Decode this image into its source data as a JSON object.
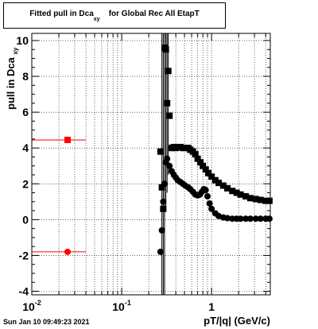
{
  "title": {
    "prefix": "Fitted pull in Dca",
    "subscript": "xy",
    "suffix": "for Global Rec All EtapT"
  },
  "footer_date": "Sun Jan 10 09:49:23 2021",
  "chart_data": {
    "type": "scatter",
    "title": "Fitted pull in Dca_xy for Global Rec All EtapT",
    "xlabel": "pT/|q| (GeV/c)",
    "ylabel_main": "pull in Dca",
    "ylabel_sub": "xy",
    "xscale": "log",
    "xlim": [
      0.01,
      4.5
    ],
    "ylim": [
      -4.2,
      10.4
    ],
    "yticks": [
      -4,
      -2,
      0,
      2,
      4,
      6,
      8,
      10
    ],
    "xticks": [
      {
        "value": 0.01,
        "base": "10",
        "exp": "-2"
      },
      {
        "value": 0.1,
        "base": "10",
        "exp": "-1"
      },
      {
        "value": 1,
        "label": "1"
      }
    ],
    "grid": true,
    "series": [
      {
        "color": "#ff0000",
        "marker": "square",
        "points": [
          {
            "x": 0.025,
            "y": 4.45,
            "xerr": [
              0.01,
              0.04
            ]
          }
        ]
      },
      {
        "color": "#ff0000",
        "marker": "circle",
        "points": [
          {
            "x": 0.025,
            "y": -1.8,
            "xerr": [
              0.01,
              0.04
            ]
          }
        ]
      },
      {
        "color": "#000000",
        "marker": "square",
        "points": [
          {
            "x": 0.27,
            "y": 3.8
          },
          {
            "x": 0.28,
            "y": 1.8
          },
          {
            "x": 0.29,
            "y": 0.6
          },
          {
            "x": 0.3,
            "y": 9.6
          },
          {
            "x": 0.31,
            "y": 9.5
          },
          {
            "x": 0.32,
            "y": 6.5
          },
          {
            "x": 0.33,
            "y": 8.3
          },
          {
            "x": 0.34,
            "y": 5.8
          },
          {
            "x": 0.36,
            "y": 4.0
          },
          {
            "x": 0.38,
            "y": 4.05
          },
          {
            "x": 0.4,
            "y": 4.0
          },
          {
            "x": 0.42,
            "y": 4.05
          },
          {
            "x": 0.45,
            "y": 4.05
          },
          {
            "x": 0.48,
            "y": 4.0
          },
          {
            "x": 0.51,
            "y": 4.0
          },
          {
            "x": 0.55,
            "y": 4.0
          },
          {
            "x": 0.58,
            "y": 3.9
          },
          {
            "x": 0.62,
            "y": 3.8
          },
          {
            "x": 0.66,
            "y": 3.65
          },
          {
            "x": 0.7,
            "y": 3.4
          },
          {
            "x": 0.75,
            "y": 3.2
          },
          {
            "x": 0.8,
            "y": 3.0
          },
          {
            "x": 0.86,
            "y": 2.8
          },
          {
            "x": 0.92,
            "y": 2.6
          },
          {
            "x": 1.0,
            "y": 2.4
          },
          {
            "x": 1.1,
            "y": 2.2
          },
          {
            "x": 1.2,
            "y": 2.05
          },
          {
            "x": 1.35,
            "y": 1.9
          },
          {
            "x": 1.5,
            "y": 1.75
          },
          {
            "x": 1.7,
            "y": 1.6
          },
          {
            "x": 1.9,
            "y": 1.5
          },
          {
            "x": 2.1,
            "y": 1.4
          },
          {
            "x": 2.4,
            "y": 1.3
          },
          {
            "x": 2.7,
            "y": 1.2
          },
          {
            "x": 3.1,
            "y": 1.15
          },
          {
            "x": 3.5,
            "y": 1.1
          },
          {
            "x": 4.0,
            "y": 1.05
          },
          {
            "x": 4.4,
            "y": 1.05
          }
        ]
      },
      {
        "color": "#000000",
        "marker": "circle",
        "points": [
          {
            "x": 0.27,
            "y": -1.8
          },
          {
            "x": 0.28,
            "y": -0.6
          },
          {
            "x": 0.29,
            "y": 1.0
          },
          {
            "x": 0.3,
            "y": 2.0
          },
          {
            "x": 0.31,
            "y": 3.2
          },
          {
            "x": 0.32,
            "y": 3.4
          },
          {
            "x": 0.34,
            "y": 3.0
          },
          {
            "x": 0.36,
            "y": 2.7
          },
          {
            "x": 0.38,
            "y": 2.5
          },
          {
            "x": 0.4,
            "y": 2.35
          },
          {
            "x": 0.42,
            "y": 2.2
          },
          {
            "x": 0.45,
            "y": 2.1
          },
          {
            "x": 0.48,
            "y": 2.0
          },
          {
            "x": 0.51,
            "y": 1.9
          },
          {
            "x": 0.55,
            "y": 1.8
          },
          {
            "x": 0.58,
            "y": 1.7
          },
          {
            "x": 0.62,
            "y": 1.55
          },
          {
            "x": 0.66,
            "y": 1.4
          },
          {
            "x": 0.7,
            "y": 1.35
          },
          {
            "x": 0.74,
            "y": 1.4
          },
          {
            "x": 0.78,
            "y": 1.55
          },
          {
            "x": 0.82,
            "y": 1.7
          },
          {
            "x": 0.86,
            "y": 1.65
          },
          {
            "x": 0.9,
            "y": 1.3
          },
          {
            "x": 0.95,
            "y": 0.9
          },
          {
            "x": 1.0,
            "y": 0.6
          },
          {
            "x": 1.1,
            "y": 0.35
          },
          {
            "x": 1.2,
            "y": 0.2
          },
          {
            "x": 1.35,
            "y": 0.12
          },
          {
            "x": 1.5,
            "y": 0.08
          },
          {
            "x": 1.7,
            "y": 0.05
          },
          {
            "x": 1.9,
            "y": 0.05
          },
          {
            "x": 2.1,
            "y": 0.05
          },
          {
            "x": 2.4,
            "y": 0.05
          },
          {
            "x": 2.7,
            "y": 0.05
          },
          {
            "x": 3.1,
            "y": 0.05
          },
          {
            "x": 3.5,
            "y": 0.05
          },
          {
            "x": 4.0,
            "y": 0.05
          },
          {
            "x": 4.4,
            "y": 0.05
          }
        ]
      }
    ],
    "vertical_error_bars": [
      {
        "x": 0.28,
        "ylow": -4.2,
        "yhigh": 10.4
      },
      {
        "x": 0.29,
        "ylow": -4.2,
        "yhigh": 10.4
      },
      {
        "x": 0.3,
        "ylow": -4.2,
        "yhigh": 10.4
      },
      {
        "x": 0.31,
        "ylow": 0.5,
        "yhigh": 10.4
      },
      {
        "x": 0.32,
        "ylow": 1.5,
        "yhigh": 10.4
      },
      {
        "x": 0.33,
        "ylow": 2.5,
        "yhigh": 10.4
      }
    ]
  }
}
